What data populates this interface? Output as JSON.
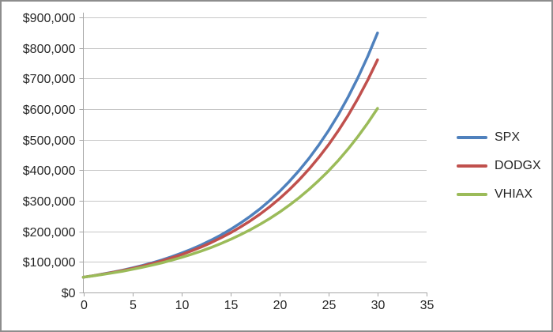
{
  "window": {
    "background": "#ffffff",
    "frame_color": "#8d8d8d"
  },
  "chart_data": {
    "type": "line",
    "title": "",
    "xlabel": "",
    "ylabel": "",
    "grid": "horizontal",
    "legend_position": "right",
    "xlim": [
      0,
      35
    ],
    "ylim": [
      0,
      900000
    ],
    "x_ticks": [
      0,
      5,
      10,
      15,
      20,
      25,
      30,
      35
    ],
    "x_tick_labels": [
      "0",
      "5",
      "10",
      "15",
      "20",
      "25",
      "30",
      "35"
    ],
    "y_ticks": [
      0,
      100000,
      200000,
      300000,
      400000,
      500000,
      600000,
      700000,
      800000,
      900000
    ],
    "y_tick_labels": [
      "$0",
      "$100,000",
      "$200,000",
      "$300,000",
      "$400,000",
      "$500,000",
      "$600,000",
      "$700,000",
      "$800,000",
      "$900,000"
    ],
    "x": [
      0,
      1,
      2,
      3,
      4,
      5,
      6,
      7,
      8,
      9,
      10,
      11,
      12,
      13,
      14,
      15,
      16,
      17,
      18,
      19,
      20,
      21,
      22,
      23,
      24,
      25,
      26,
      27,
      28,
      29,
      30
    ],
    "series": [
      {
        "name": "SPX",
        "color": "#4F81BD",
        "values": [
          50000,
          54950,
          60390,
          66369,
          72939,
          80160,
          88096,
          96818,
          106403,
          116936,
          128513,
          141236,
          155218,
          170585,
          187473,
          206033,
          226430,
          248846,
          273482,
          300547,
          330301,
          363001,
          398938,
          438433,
          481838,
          529540,
          581964,
          639579,
          702897,
          772484,
          848960
        ]
      },
      {
        "name": "DODGX",
        "color": "#C0504D",
        "values": [
          50000,
          54750,
          59951,
          65647,
          71883,
          78712,
          86190,
          94378,
          103344,
          113161,
          123912,
          135683,
          148573,
          162687,
          178143,
          195066,
          213597,
          233889,
          256108,
          280438,
          307080,
          336252,
          368196,
          403175,
          441476,
          483417,
          529341,
          579628,
          634693,
          694989,
          761063
        ]
      },
      {
        "name": "VHIAX",
        "color": "#9BBB59",
        "values": [
          50000,
          54325,
          59024,
          64130,
          69677,
          75704,
          82252,
          89367,
          97097,
          105496,
          114621,
          124536,
          135309,
          147013,
          159729,
          173546,
          188558,
          204869,
          222590,
          241844,
          262764,
          285493,
          310188,
          337019,
          366171,
          397845,
          432258,
          469648,
          510273,
          554411,
          602368
        ]
      }
    ],
    "axis_color": "#A6A6A6",
    "gridline_color": "#C6C6C6",
    "tick_label_color": "#262626",
    "line_width": 3.5
  }
}
